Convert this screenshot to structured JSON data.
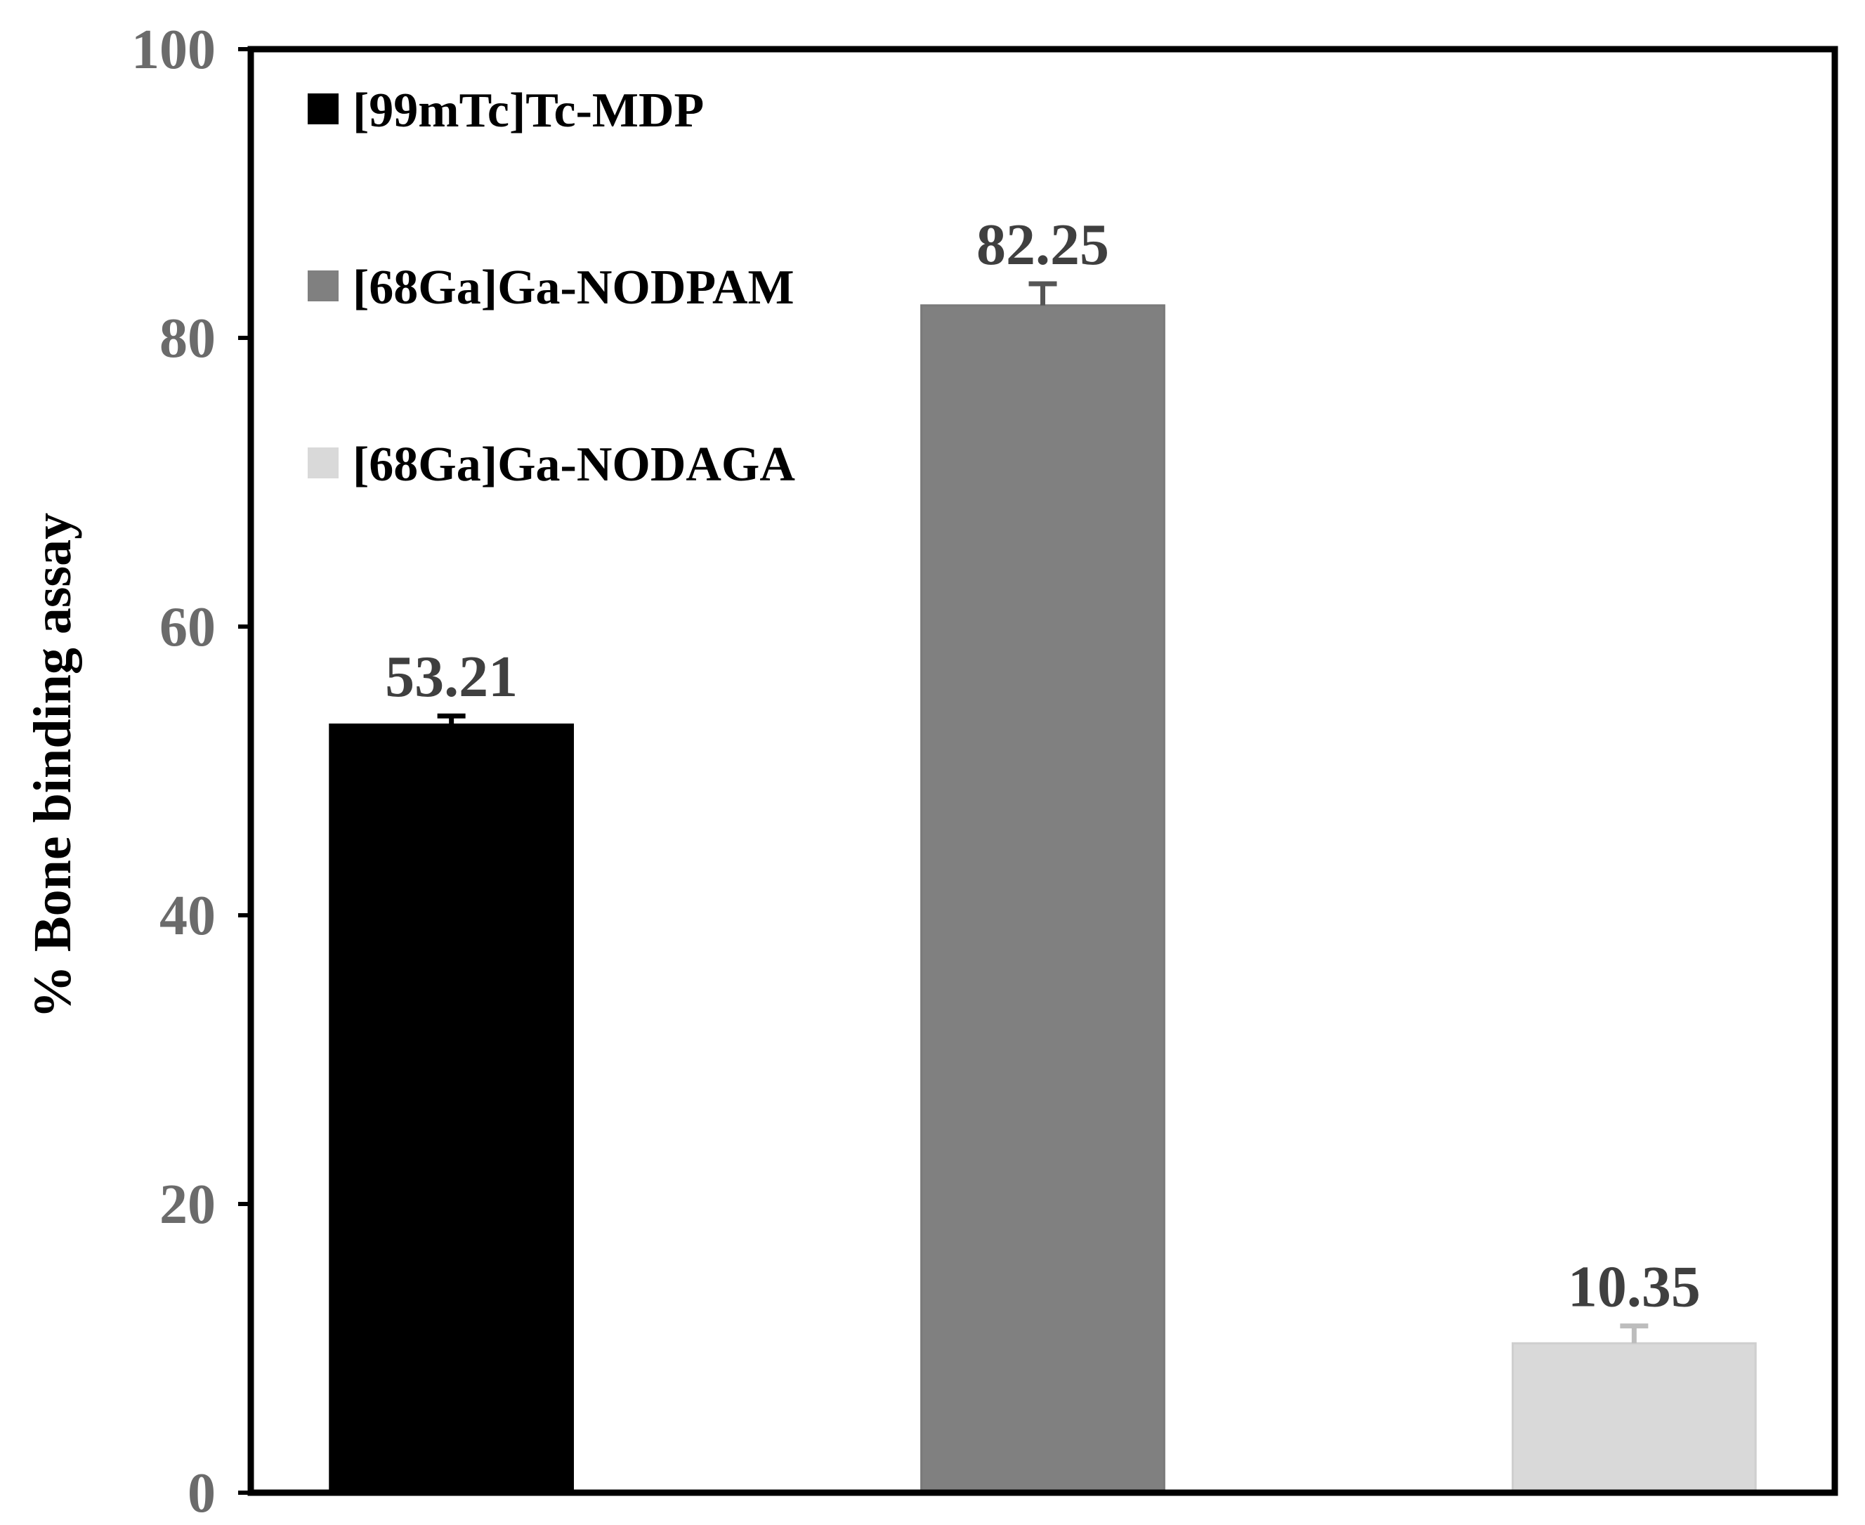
{
  "chart_data": {
    "type": "bar",
    "title": "",
    "xlabel": "",
    "ylabel": "% Bone binding assay",
    "ylim": [
      0,
      100
    ],
    "yticks": [
      0,
      20,
      40,
      60,
      80,
      100
    ],
    "grid": false,
    "legend_position": "top-left",
    "series": [
      {
        "name": "[99mTc]Tc-MDP",
        "value": 53.21,
        "error": 0.6,
        "label": "53.21",
        "color": "#000000"
      },
      {
        "name": "[68Ga]Ga-NODPAM",
        "value": 82.25,
        "error": 1.5,
        "label": "82.25",
        "color": "#808080"
      },
      {
        "name": "[68Ga]Ga-NODAGA",
        "value": 10.35,
        "error": 1.2,
        "label": "10.35",
        "color": "#d9d9d9"
      }
    ]
  }
}
